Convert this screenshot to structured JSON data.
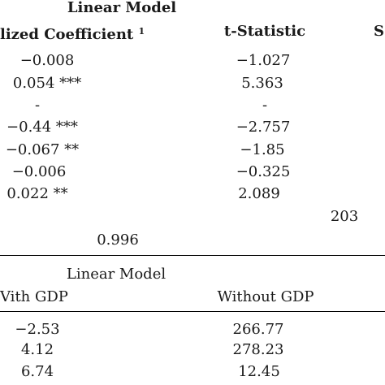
{
  "table1": {
    "group_header": "Linear Model",
    "columns": [
      "lized Coefficient",
      "t-Statistic",
      "S"
    ],
    "coef_footnote": "1",
    "rows": [
      {
        "coef": "−0.008",
        "t": "−1.027"
      },
      {
        "coef": "0.054 ***",
        "t": "5.363"
      },
      {
        "coef": "-",
        "t": "-"
      },
      {
        "coef": "−0.44 ***",
        "t": "−2.757"
      },
      {
        "coef": "−0.067 **",
        "t": "−1.85"
      },
      {
        "coef": "−0.006",
        "t": "−0.325"
      },
      {
        "coef": "0.022 **",
        "t": "2.089"
      }
    ],
    "observations": "203",
    "r_squared": "0.996"
  },
  "table2": {
    "group_header": "Linear Model",
    "columns": [
      "Vith GDP",
      "Without GDP"
    ],
    "rows": [
      {
        "with": "−2.53",
        "without": "266.77"
      },
      {
        "with": "4.12",
        "without": "278.23"
      },
      {
        "with": "6.74",
        "without": "12.45"
      }
    ]
  }
}
